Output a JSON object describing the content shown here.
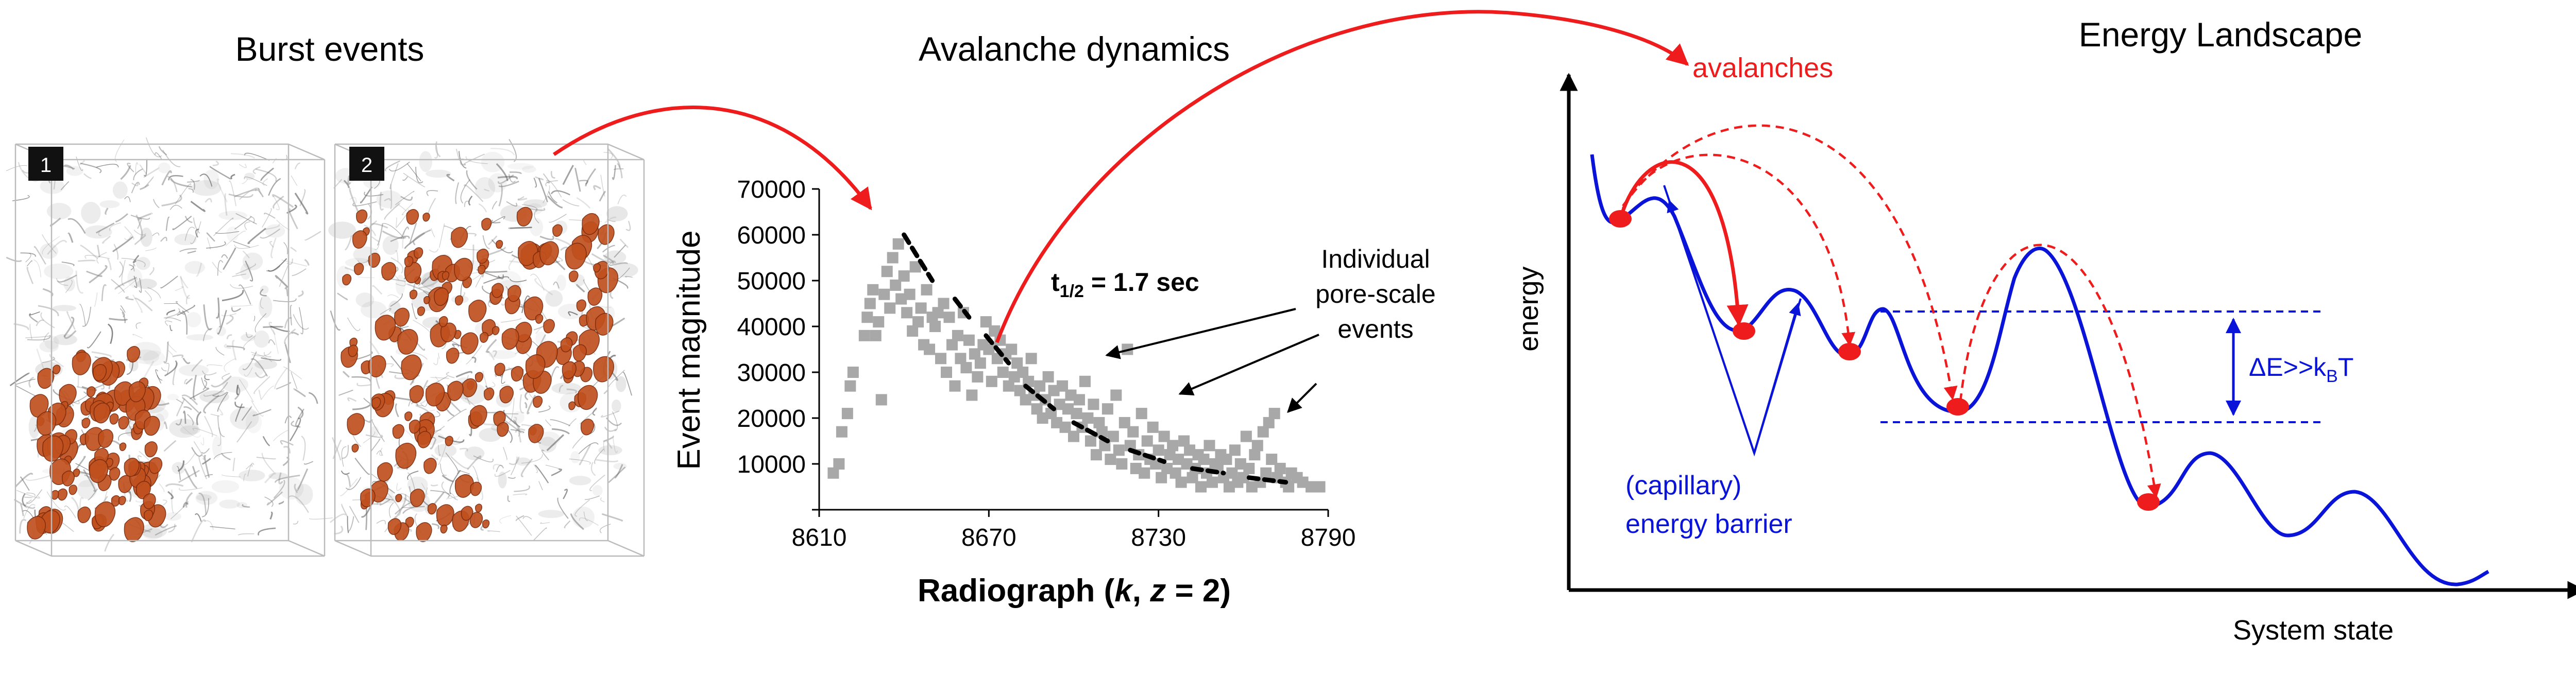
{
  "titles": {
    "burst": "Burst events",
    "avalanche": "Avalanche dynamics",
    "energy": "Energy Landscape"
  },
  "burst_panels": [
    {
      "badge": "1",
      "burst_level": 0.3
    },
    {
      "badge": "2",
      "burst_level": 0.75
    }
  ],
  "scatter": {
    "ylabel": "Event magnitude",
    "xlabel_parts": [
      "Radiograph (",
      "k",
      ", ",
      "z",
      " = 2)"
    ],
    "half_life": {
      "label": "t",
      "sub": "1/2",
      "value": " = 1.7 sec"
    },
    "annotation_lines": [
      "Individual",
      "pore-scale",
      "events"
    ]
  },
  "chart_data": {
    "type": "scatter",
    "x_ticks": [
      8610,
      8670,
      8730,
      8790
    ],
    "y_ticks": [
      0,
      10000,
      20000,
      30000,
      40000,
      50000,
      60000,
      70000
    ],
    "tick_labels_y": [
      "",
      "10000",
      "20000",
      "30000",
      "40000",
      "50000",
      "60000",
      "70000"
    ],
    "xlim": [
      8610,
      8790
    ],
    "ylim": [
      0,
      70000
    ],
    "points": [
      [
        8615,
        8000
      ],
      [
        8617,
        10000
      ],
      [
        8618,
        17000
      ],
      [
        8620,
        21000
      ],
      [
        8621,
        27000
      ],
      [
        8622,
        30000
      ],
      [
        8626,
        38000
      ],
      [
        8627,
        42000
      ],
      [
        8628,
        45000
      ],
      [
        8629,
        48000
      ],
      [
        8630,
        38000
      ],
      [
        8631,
        41000
      ],
      [
        8632,
        24000
      ],
      [
        8633,
        47000
      ],
      [
        8634,
        52000
      ],
      [
        8635,
        44000
      ],
      [
        8636,
        55000
      ],
      [
        8637,
        49000
      ],
      [
        8638,
        58000
      ],
      [
        8639,
        46000
      ],
      [
        8640,
        51000
      ],
      [
        8641,
        43000
      ],
      [
        8642,
        47000
      ],
      [
        8643,
        39000
      ],
      [
        8644,
        53000
      ],
      [
        8645,
        41000
      ],
      [
        8646,
        44000
      ],
      [
        8647,
        36000
      ],
      [
        8648,
        48000
      ],
      [
        8649,
        35000
      ],
      [
        8650,
        42000
      ],
      [
        8651,
        40000
      ],
      [
        8652,
        43000
      ],
      [
        8653,
        33000
      ],
      [
        8654,
        45000
      ],
      [
        8655,
        30000
      ],
      [
        8656,
        42000
      ],
      [
        8657,
        36000
      ],
      [
        8658,
        27000
      ],
      [
        8659,
        38000
      ],
      [
        8660,
        33000
      ],
      [
        8661,
        43000
      ],
      [
        8662,
        31000
      ],
      [
        8663,
        37000
      ],
      [
        8664,
        25000
      ],
      [
        8665,
        34000
      ],
      [
        8666,
        29000
      ],
      [
        8667,
        32000
      ],
      [
        8668,
        36000
      ],
      [
        8669,
        41000
      ],
      [
        8670,
        35000
      ],
      [
        8671,
        28000
      ],
      [
        8672,
        39000
      ],
      [
        8673,
        33000
      ],
      [
        8674,
        37000
      ],
      [
        8675,
        30000
      ],
      [
        8676,
        34000
      ],
      [
        8677,
        27000
      ],
      [
        8678,
        35000
      ],
      [
        8679,
        29000
      ],
      [
        8680,
        32000
      ],
      [
        8681,
        26000
      ],
      [
        8682,
        30000
      ],
      [
        8683,
        24000
      ],
      [
        8684,
        28000
      ],
      [
        8685,
        33000
      ],
      [
        8686,
        25000
      ],
      [
        8687,
        22000
      ],
      [
        8688,
        27000
      ],
      [
        8689,
        20000
      ],
      [
        8690,
        24000
      ],
      [
        8691,
        29000
      ],
      [
        8692,
        21000
      ],
      [
        8693,
        26000
      ],
      [
        8694,
        19000
      ],
      [
        8695,
        23000
      ],
      [
        8696,
        27000
      ],
      [
        8697,
        18000
      ],
      [
        8698,
        22000
      ],
      [
        8699,
        25000
      ],
      [
        8700,
        16000
      ],
      [
        8701,
        21000
      ],
      [
        8702,
        24000
      ],
      [
        8703,
        18000
      ],
      [
        8704,
        28000
      ],
      [
        8705,
        20000
      ],
      [
        8706,
        15000
      ],
      [
        8707,
        23000
      ],
      [
        8708,
        12000
      ],
      [
        8709,
        19000
      ],
      [
        8710,
        17000
      ],
      [
        8711,
        14000
      ],
      [
        8712,
        22000
      ],
      [
        8713,
        11000
      ],
      [
        8714,
        16000
      ],
      [
        8715,
        25000
      ],
      [
        8716,
        13000
      ],
      [
        8717,
        10000
      ],
      [
        8718,
        19000
      ],
      [
        8719,
        35000
      ],
      [
        8720,
        14000
      ],
      [
        8721,
        17000
      ],
      [
        8722,
        9000
      ],
      [
        8723,
        12000
      ],
      [
        8724,
        21000
      ],
      [
        8725,
        8000
      ],
      [
        8726,
        15000
      ],
      [
        8727,
        11000
      ],
      [
        8728,
        18000
      ],
      [
        8729,
        10000
      ],
      [
        8730,
        13000
      ],
      [
        8731,
        7000
      ],
      [
        8732,
        16000
      ],
      [
        8733,
        9000
      ],
      [
        8734,
        12000
      ],
      [
        8735,
        14000
      ],
      [
        8736,
        8000
      ],
      [
        8737,
        11000
      ],
      [
        8738,
        6000
      ],
      [
        8739,
        15000
      ],
      [
        8740,
        10000
      ],
      [
        8741,
        13000
      ],
      [
        8742,
        7000
      ],
      [
        8743,
        9000
      ],
      [
        8744,
        12000
      ],
      [
        8745,
        5000
      ],
      [
        8746,
        11000
      ],
      [
        8747,
        8000
      ],
      [
        8748,
        14000
      ],
      [
        8749,
        6000
      ],
      [
        8750,
        10000
      ],
      [
        8751,
        9000
      ],
      [
        8752,
        12000
      ],
      [
        8753,
        7000
      ],
      [
        8754,
        11000
      ],
      [
        8755,
        5000
      ],
      [
        8756,
        8000
      ],
      [
        8757,
        13000
      ],
      [
        8758,
        6000
      ],
      [
        8759,
        10000
      ],
      [
        8760,
        7000
      ],
      [
        8761,
        16000
      ],
      [
        8762,
        9000
      ],
      [
        8763,
        5000
      ],
      [
        8764,
        12000
      ],
      [
        8765,
        14000
      ],
      [
        8766,
        6000
      ],
      [
        8767,
        17000
      ],
      [
        8768,
        8000
      ],
      [
        8769,
        19000
      ],
      [
        8770,
        11000
      ],
      [
        8771,
        21000
      ],
      [
        8772,
        7000
      ],
      [
        8773,
        9000
      ],
      [
        8775,
        6000
      ],
      [
        8776,
        5000
      ],
      [
        8777,
        8000
      ],
      [
        8779,
        7000
      ],
      [
        8781,
        6000
      ],
      [
        8784,
        5000
      ],
      [
        8787,
        5000
      ]
    ],
    "fit_segments": [
      [
        [
          8640,
          60000
        ],
        [
          8650,
          50000
        ]
      ],
      [
        [
          8658,
          46000
        ],
        [
          8663,
          42000
        ]
      ],
      [
        [
          8669,
          38000
        ],
        [
          8677,
          32000
        ]
      ],
      [
        [
          8683,
          27000
        ],
        [
          8693,
          22000
        ]
      ],
      [
        [
          8700,
          19000
        ],
        [
          8712,
          15000
        ]
      ],
      [
        [
          8720,
          13000
        ],
        [
          8732,
          10500
        ]
      ],
      [
        [
          8742,
          9000
        ],
        [
          8753,
          8000
        ]
      ],
      [
        [
          8762,
          7000
        ],
        [
          8775,
          6000
        ]
      ]
    ],
    "xlabel": "Radiograph (k, z = 2)",
    "ylabel": "Event magnitude"
  },
  "energy": {
    "ylabel": "energy",
    "xlabel": "System state",
    "avalanches_label": "avalanches",
    "barrier_lines": [
      "(capillary)",
      "energy barrier"
    ],
    "delta_label": {
      "main": "ΔE>>k",
      "sub": "B",
      "tail": "T"
    }
  },
  "colors": {
    "red": "#ee1c1c",
    "blue": "#0a14d8",
    "orange": "#c0501e",
    "gray_marker": "#a8a8a8"
  }
}
